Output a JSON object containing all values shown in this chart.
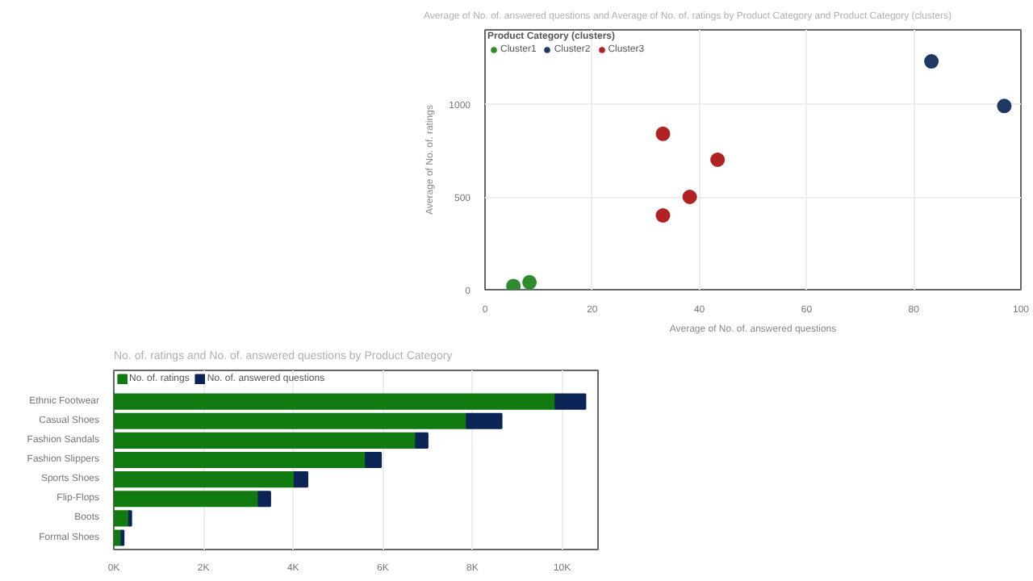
{
  "chart_data": [
    {
      "type": "scatter",
      "title": "Average of No. of. answered questions and Average of No. of. ratings by Product Category and Product Category (clusters)",
      "xlabel": "Average of No. of. answered questions",
      "ylabel": "Average of No. of. ratings",
      "legend_title": "Product Category (clusters)",
      "legend": "top left",
      "grid": true,
      "marker": "circle",
      "xlim": [
        0,
        100
      ],
      "xticks": [
        0,
        20,
        40,
        60,
        80,
        100
      ],
      "ylim": [
        0,
        1400
      ],
      "yticks": [
        0,
        500,
        1000
      ],
      "series": [
        {
          "name": "Cluster1",
          "color": "#2e8b2e",
          "x": [
            5.3,
            8.3
          ],
          "values": [
            20,
            40
          ]
        },
        {
          "name": "Cluster2",
          "color": "#1f3864",
          "x": [
            83.3,
            96.9
          ],
          "values": [
            1230,
            990
          ]
        },
        {
          "name": "Cluster3",
          "color": "#b22222",
          "x": [
            33.2,
            43.4,
            38.2,
            33.2
          ],
          "values": [
            840,
            700,
            500,
            400
          ]
        }
      ]
    },
    {
      "type": "bar",
      "orientation": "horizontal",
      "stacked": true,
      "title": "No. of. ratings and No. of. answered questions by Product Category",
      "legend": "top left",
      "grid": "x",
      "xlim": [
        0,
        10800
      ],
      "xticks": [
        {
          "value": 0,
          "label": "0K"
        },
        {
          "value": 2000,
          "label": "2K"
        },
        {
          "value": 4000,
          "label": "4K"
        },
        {
          "value": 6000,
          "label": "6K"
        },
        {
          "value": 8000,
          "label": "8K"
        },
        {
          "value": 10000,
          "label": "10K"
        }
      ],
      "categories": [
        "Ethnic Footwear",
        "Casual Shoes",
        "Fashion Sandals",
        "Fashion Slippers",
        "Sports Shoes",
        "Flip-Flops",
        "Boots",
        "Formal Shoes"
      ],
      "series": [
        {
          "name": "No. of. ratings",
          "color": "#117a11",
          "values": [
            9850,
            7870,
            6740,
            5620,
            4030,
            3230,
            340,
            170
          ]
        },
        {
          "name": "No. of. answered questions",
          "color": "#0c2356",
          "values": [
            670,
            780,
            260,
            340,
            290,
            260,
            50,
            50
          ]
        }
      ]
    }
  ]
}
